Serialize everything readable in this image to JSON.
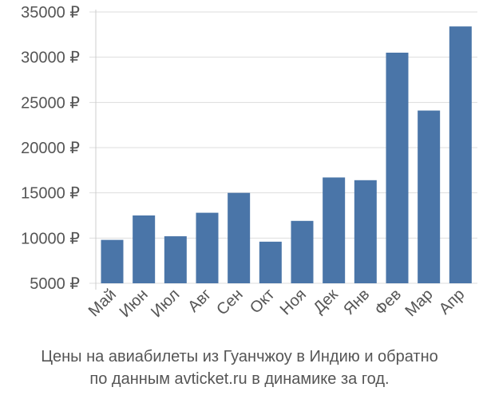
{
  "chart_data": {
    "type": "bar",
    "categories": [
      "Май",
      "Июн",
      "Июл",
      "Авг",
      "Сен",
      "Окт",
      "Ноя",
      "Дек",
      "Янв",
      "Фев",
      "Мар",
      "Апр"
    ],
    "values": [
      9800,
      12500,
      10200,
      12800,
      15000,
      9600,
      11900,
      16700,
      16400,
      30500,
      24100,
      33400
    ],
    "y_ticks": [
      "5000 ₽",
      "10000 ₽",
      "15000 ₽",
      "20000 ₽",
      "25000 ₽",
      "30000 ₽",
      "35000 ₽"
    ],
    "ylim": [
      5000,
      35000
    ],
    "bar_color": "#4a75a8",
    "grid_color": "#dddddd",
    "title": "",
    "xlabel": "",
    "ylabel": ""
  },
  "caption": {
    "line1": "Цены на авиабилеты из Гуанчжоу в Индию и обратно",
    "line2": "по данным avticket.ru в динамике за год."
  }
}
